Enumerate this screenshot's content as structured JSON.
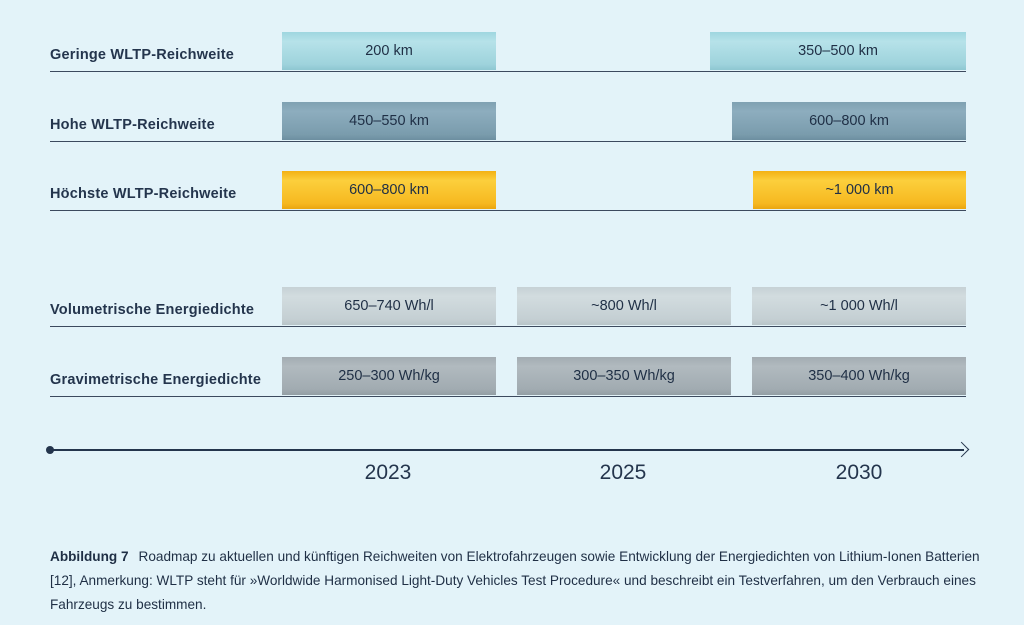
{
  "rows": [
    {
      "label": "Geringe WLTP-Reichweite",
      "bars": [
        "200 km",
        "350–500 km"
      ],
      "color": "#a8dbe3"
    },
    {
      "label": "Hohe WLTP-Reichweite",
      "bars": [
        "450–550 km",
        "600–800 km"
      ],
      "color": "#82a4b5"
    },
    {
      "label": "Höchste WLTP-Reichweite",
      "bars": [
        "600–800 km",
        "~1 000 km"
      ],
      "color": "#f8bf25"
    },
    {
      "label": "Volumetrische Energiedichte",
      "bars": [
        "650–740 Wh/l",
        "~800 Wh/l",
        "~1 000 Wh/l"
      ],
      "color": "#c9d3d7"
    },
    {
      "label": "Gravimetrische Energiedichte",
      "bars": [
        "250–300 Wh/kg",
        "300–350 Wh/kg",
        "350–400 Wh/kg"
      ],
      "color": "#a7b0b6"
    }
  ],
  "years": [
    "2023",
    "2025",
    "2030"
  ],
  "caption": {
    "figure_label": "Abbildung 7",
    "text": "Roadmap zu aktuellen und künftigen Reichweiten von Elektrofahrzeugen sowie Entwicklung der Energiedichten von Lithium-Ionen Batterien [12], Anmerkung: WLTP steht für »Worldwide Harmonised Light-Duty Vehicles Test Procedure« und beschreibt ein Testverfahren, um den Verbrauch eines Fahrzeugs zu bestimmen."
  }
}
